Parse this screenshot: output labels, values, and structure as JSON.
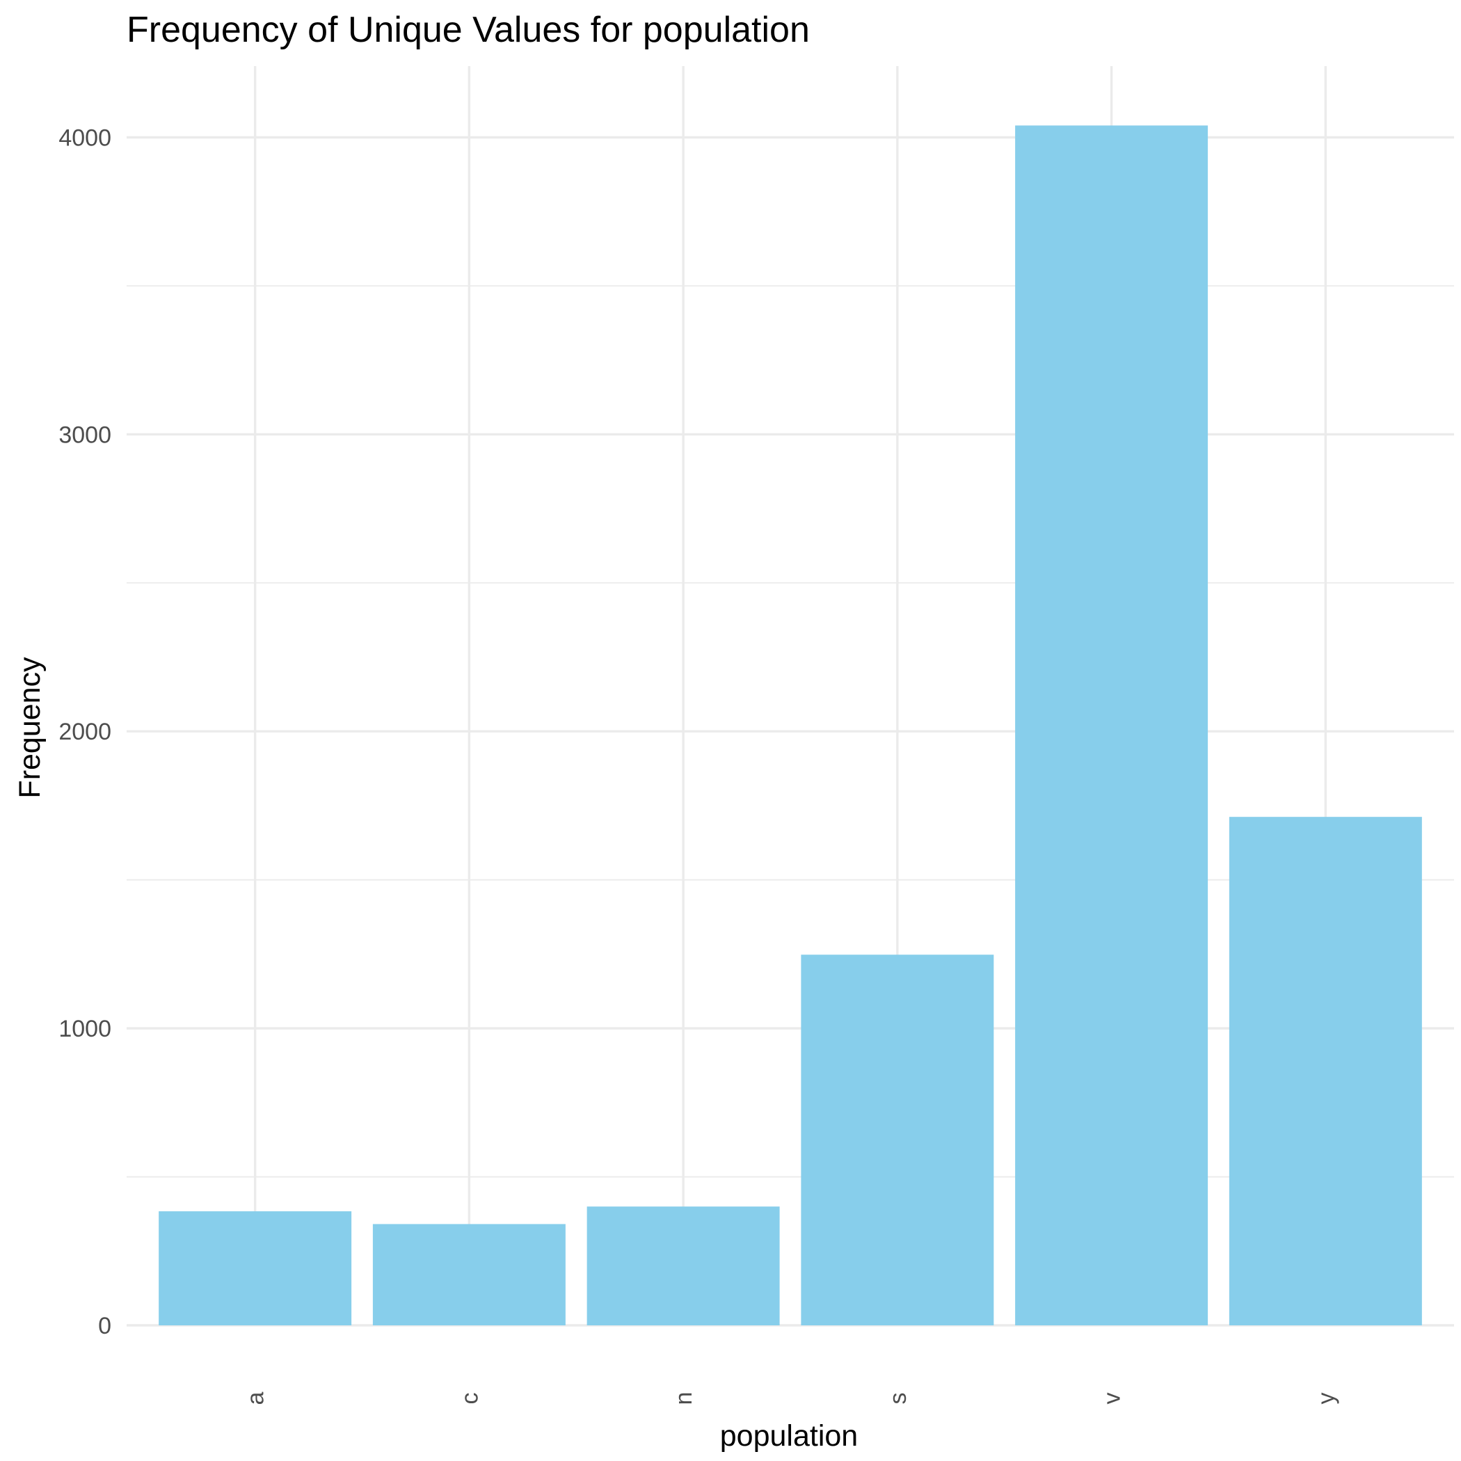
{
  "chart_data": {
    "type": "bar",
    "title": "Frequency of Unique Values for population",
    "xlabel": "population",
    "ylabel": "Frequency",
    "categories": [
      "a",
      "c",
      "n",
      "s",
      "v",
      "y"
    ],
    "values": [
      384,
      341,
      400,
      1248,
      4040,
      1712
    ],
    "ylim": [
      0,
      4240
    ],
    "yticks": [
      0,
      1000,
      2000,
      3000,
      4000
    ],
    "yticks_minor": [
      500,
      1500,
      2500,
      3500
    ],
    "bar_color": "#87CEEB",
    "grid": true,
    "legend": "none"
  }
}
